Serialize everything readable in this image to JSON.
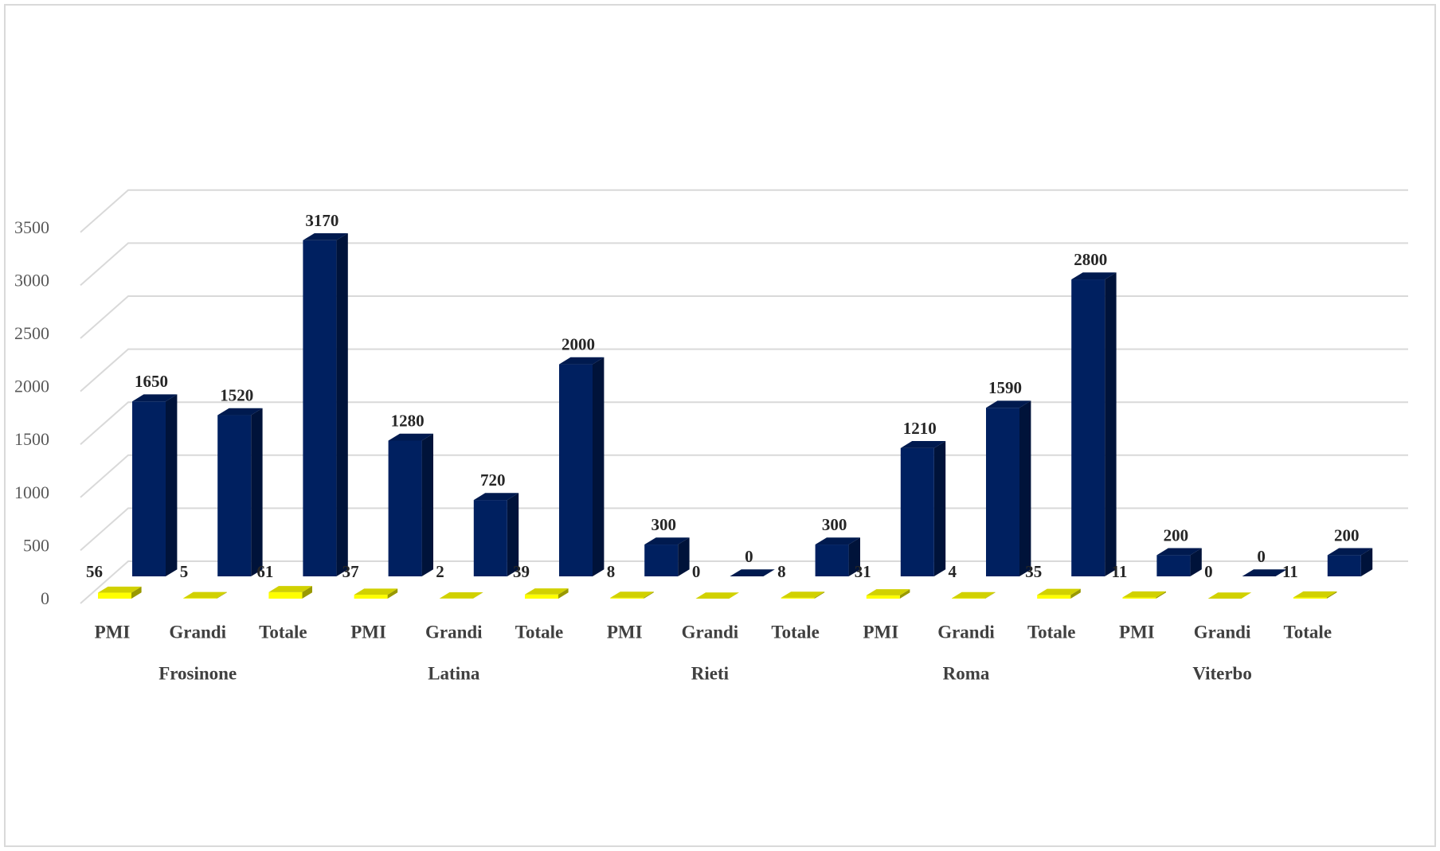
{
  "chart_data": {
    "type": "bar3d",
    "categories": [
      "PMI",
      "Grandi",
      "Totale",
      "PMI",
      "Grandi",
      "Totale",
      "PMI",
      "Grandi",
      "Totale",
      "PMI",
      "Grandi",
      "Totale",
      "PMI",
      "Grandi",
      "Totale"
    ],
    "groups": [
      "Frosinone",
      "Latina",
      "Rieti",
      "Roma",
      "Viterbo"
    ],
    "series": [
      {
        "color": "#ffff00",
        "values": [
          56,
          5,
          61,
          37,
          2,
          39,
          8,
          0,
          8,
          31,
          4,
          35,
          11,
          0,
          11
        ]
      },
      {
        "color": "#002060",
        "values": [
          1650,
          1520,
          3170,
          1280,
          720,
          2000,
          300,
          0,
          300,
          1210,
          1590,
          2800,
          200,
          0,
          200
        ]
      }
    ],
    "ylim": [
      0,
      3500
    ],
    "yticks": [
      0,
      500,
      1000,
      1500,
      2000,
      2500,
      3000,
      3500
    ],
    "grid": true
  }
}
